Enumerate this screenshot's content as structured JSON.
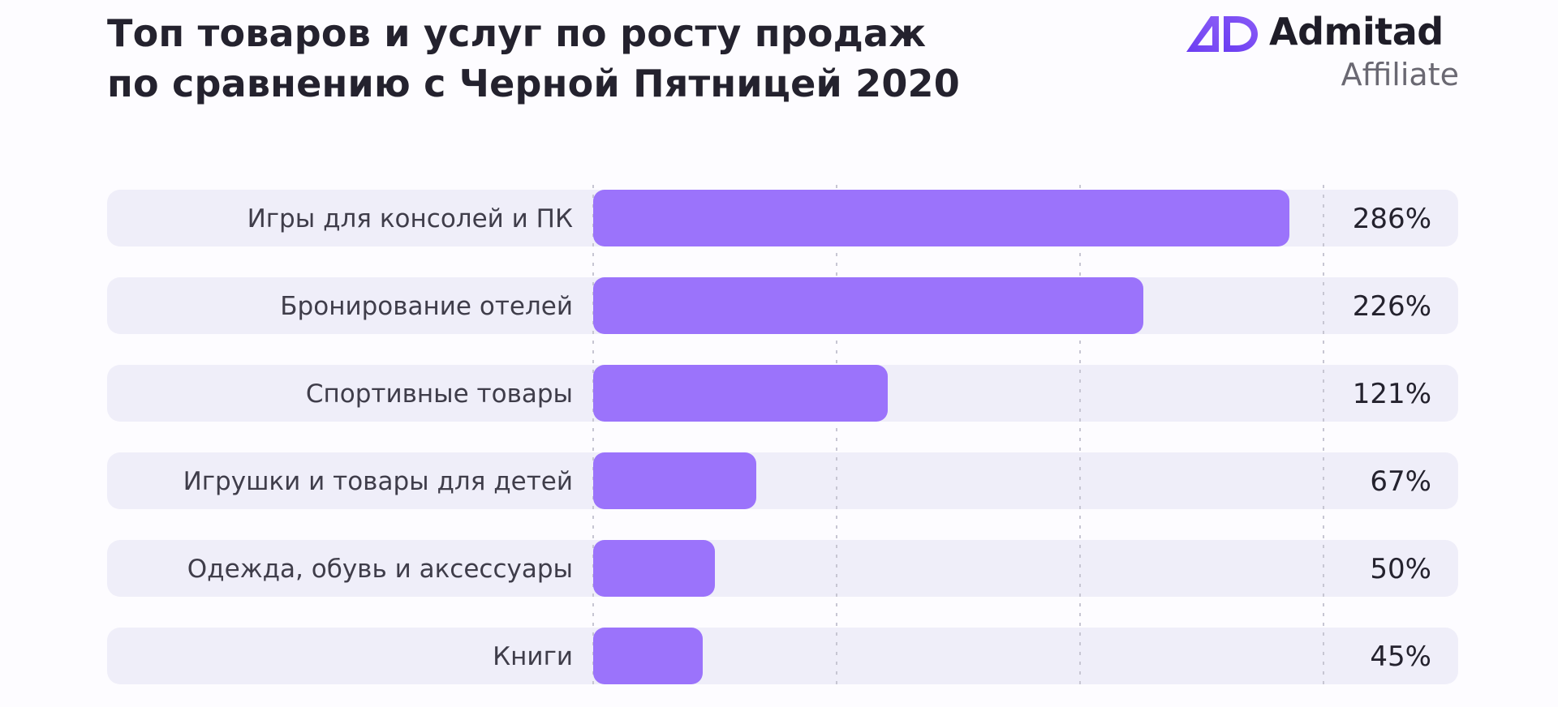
{
  "header": {
    "title_line1": "Топ товаров и услуг по росту продаж",
    "title_line2": "по сравнению с Черной Пятницей 2020"
  },
  "logo": {
    "name": "Admitad",
    "sub": "Affiliate",
    "icon": "admitad-ad-logo-icon",
    "gradient": [
      "#6a3cf2",
      "#8a5cf6"
    ]
  },
  "chart_data": {
    "type": "bar",
    "orientation": "horizontal",
    "title": "Топ товаров и услуг по росту продаж по сравнению с Черной Пятницей 2020",
    "categories": [
      "Игры для консолей и ПК",
      "Бронирование отелей",
      "Спортивные товары",
      "Игрушки и товары для детей",
      "Одежда, обувь и аксессуары",
      "Книги"
    ],
    "values": [
      286,
      226,
      121,
      67,
      50,
      45
    ],
    "value_labels": [
      "286%",
      "226%",
      "121%",
      "67%",
      "50%",
      "45%"
    ],
    "unit": "%",
    "xlim": [
      0,
      300
    ],
    "gridlines": [
      0,
      100,
      200,
      300
    ],
    "grid": "dashed-vertical",
    "legend": "none",
    "colors": {
      "bar": "#9b73fb",
      "row_background": "#efeef9",
      "grid": "#c7c6d3",
      "label": "#3f3d4a",
      "value": "#24222e"
    }
  }
}
